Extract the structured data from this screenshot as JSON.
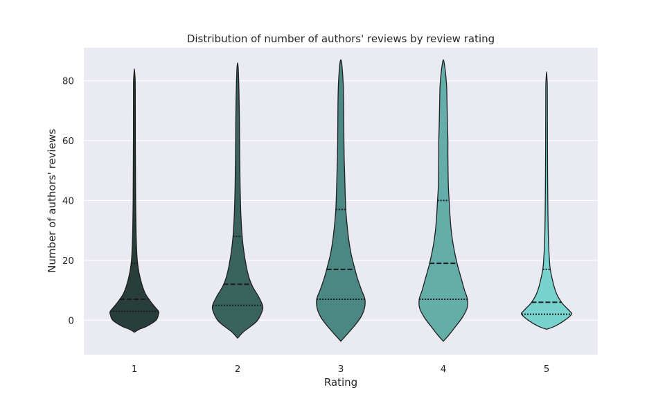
{
  "chart_data": {
    "type": "violin",
    "title": "Distribution of number of authors' reviews by review rating",
    "xlabel": "Rating",
    "ylabel": "Number of authors' reviews",
    "categories": [
      "1",
      "2",
      "3",
      "4",
      "5"
    ],
    "ylim": [
      -11.5,
      91
    ],
    "yticks": [
      0,
      20,
      40,
      60,
      80
    ],
    "grid": true,
    "colors": [
      "#283e3a",
      "#3a635e",
      "#4c8883",
      "#64ada8",
      "#78d3ce"
    ],
    "violins": [
      {
        "category": "1",
        "min": -4,
        "max": 84,
        "q1": 3,
        "median": 7,
        "q3": 19,
        "density": [
          [
            -4,
            0
          ],
          [
            -3,
            12
          ],
          [
            -2,
            30
          ],
          [
            0,
            52
          ],
          [
            2,
            58
          ],
          [
            3,
            58
          ],
          [
            5,
            46
          ],
          [
            7,
            35
          ],
          [
            9,
            26
          ],
          [
            12,
            18
          ],
          [
            16,
            11
          ],
          [
            20,
            7
          ],
          [
            25,
            5
          ],
          [
            30,
            4
          ],
          [
            40,
            3
          ],
          [
            50,
            2.6
          ],
          [
            60,
            2.4
          ],
          [
            75,
            2.2
          ],
          [
            80,
            2
          ],
          [
            82,
            1.2
          ],
          [
            84,
            0
          ]
        ]
      },
      {
        "category": "2",
        "min": -6,
        "max": 86,
        "q1": 5,
        "median": 12,
        "q3": 28,
        "density": [
          [
            -6,
            0
          ],
          [
            -4,
            13
          ],
          [
            -2,
            32
          ],
          [
            0,
            48
          ],
          [
            3,
            59
          ],
          [
            5,
            60
          ],
          [
            8,
            50
          ],
          [
            11,
            37
          ],
          [
            14,
            28
          ],
          [
            18,
            21
          ],
          [
            23,
            15
          ],
          [
            28,
            11
          ],
          [
            35,
            8
          ],
          [
            45,
            6
          ],
          [
            55,
            5
          ],
          [
            65,
            4.5
          ],
          [
            75,
            3.5
          ],
          [
            80,
            2.6
          ],
          [
            84,
            1.6
          ],
          [
            86,
            0
          ]
        ]
      },
      {
        "category": "3",
        "min": -7,
        "max": 87,
        "q1": 7,
        "median": 17,
        "q3": 37,
        "density": [
          [
            -7,
            0
          ],
          [
            -5,
            13
          ],
          [
            -2,
            32
          ],
          [
            1,
            48
          ],
          [
            4,
            57
          ],
          [
            7,
            58
          ],
          [
            10,
            50
          ],
          [
            14,
            40
          ],
          [
            17,
            34
          ],
          [
            22,
            25
          ],
          [
            27,
            19
          ],
          [
            32,
            15
          ],
          [
            37,
            12
          ],
          [
            45,
            10
          ],
          [
            50,
            9
          ],
          [
            55,
            8
          ],
          [
            60,
            7.5
          ],
          [
            70,
            7
          ],
          [
            78,
            6
          ],
          [
            83,
            4
          ],
          [
            86,
            2
          ],
          [
            87,
            0
          ]
        ]
      },
      {
        "category": "4",
        "min": -7,
        "max": 87,
        "q1": 7,
        "median": 19,
        "q3": 40,
        "density": [
          [
            -7,
            0
          ],
          [
            -5,
            13
          ],
          [
            -2,
            30
          ],
          [
            1,
            46
          ],
          [
            4,
            57
          ],
          [
            7,
            58
          ],
          [
            10,
            51
          ],
          [
            14,
            43
          ],
          [
            19,
            33
          ],
          [
            25,
            24
          ],
          [
            30,
            19
          ],
          [
            35,
            16
          ],
          [
            40,
            14
          ],
          [
            45,
            12
          ],
          [
            55,
            11
          ],
          [
            60,
            11
          ],
          [
            65,
            10
          ],
          [
            72,
            9
          ],
          [
            78,
            8
          ],
          [
            83,
            5
          ],
          [
            86,
            2
          ],
          [
            87,
            0
          ]
        ]
      },
      {
        "category": "5",
        "min": -3,
        "max": 83,
        "q1": 2,
        "median": 6,
        "q3": 17,
        "density": [
          [
            -3,
            0
          ],
          [
            -2,
            20
          ],
          [
            0,
            44
          ],
          [
            2,
            60
          ],
          [
            3,
            56
          ],
          [
            5,
            42
          ],
          [
            6,
            36
          ],
          [
            8,
            27
          ],
          [
            10,
            21
          ],
          [
            13,
            15
          ],
          [
            17,
            9
          ],
          [
            20,
            7
          ],
          [
            25,
            5
          ],
          [
            30,
            4
          ],
          [
            40,
            3
          ],
          [
            50,
            2.5
          ],
          [
            60,
            2.2
          ],
          [
            70,
            2
          ],
          [
            78,
            1.8
          ],
          [
            81,
            1
          ],
          [
            83,
            0
          ]
        ]
      }
    ]
  }
}
